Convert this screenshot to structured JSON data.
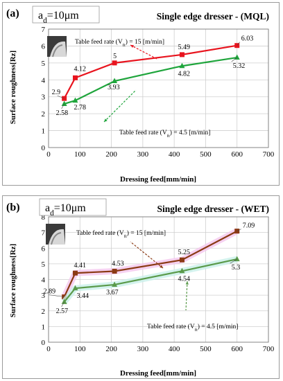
{
  "chart_data": [
    {
      "type": "line",
      "panel_label": "(a)",
      "param_label_main": "a",
      "param_label_sub": "d",
      "param_label_value": "=10μm",
      "title": "Single edge dresser - (MQL)",
      "xlabel": "Dressing feed[mm/min]",
      "ylabel": "Surface roughness[Rz]",
      "xlim": [
        0,
        700
      ],
      "ylim": [
        0,
        7
      ],
      "xticks": [
        "0",
        "100",
        "200",
        "300",
        "400",
        "500",
        "600",
        "700"
      ],
      "yticks": [
        "0",
        "1",
        "2",
        "3",
        "4",
        "5",
        "6",
        "7"
      ],
      "grid": true,
      "series": [
        {
          "name": "Table feed rate (Vft) = 15 [m/min]",
          "color": "#e8141e",
          "marker": "square",
          "x": [
            50,
            85,
            210,
            425,
            600
          ],
          "y": [
            2.9,
            4.12,
            5,
            5.49,
            6.03
          ],
          "labels": [
            "2.9",
            "4.12",
            "5",
            "5.49",
            "6.03"
          ]
        },
        {
          "name": "Table feed rate (Vft) = 4.5 [m/min]",
          "color": "#1fa53c",
          "marker": "triangle",
          "x": [
            50,
            85,
            210,
            425,
            600
          ],
          "y": [
            2.58,
            2.78,
            3.93,
            4.82,
            5.32
          ],
          "labels": [
            "2.58",
            "2.78",
            "3.93",
            "4.82",
            "5.32"
          ]
        }
      ],
      "annotations": [
        {
          "text_main": "Table feed rate (V",
          "text_sub": "ft",
          "text_end": ") = 15 [m/min]"
        },
        {
          "text_main": "Table feed rate (V",
          "text_sub": "ft",
          "text_end": ") = 4.5 [m/min]"
        }
      ]
    },
    {
      "type": "line",
      "panel_label": "(b)",
      "param_label_main": "a",
      "param_label_sub": "d",
      "param_label_value": "=10μm",
      "title": "Single edge dresser - (WET)",
      "xlabel": "Dressing feed[mm/min]",
      "ylabel": "Surface roughness[Rz]",
      "xlim": [
        0,
        700
      ],
      "ylim": [
        0,
        8
      ],
      "xticks": [
        "0",
        "100",
        "200",
        "300",
        "400",
        "500",
        "600",
        "700"
      ],
      "yticks": [
        "0",
        "1",
        "2",
        "3",
        "4",
        "5",
        "6",
        "7",
        "8"
      ],
      "grid": true,
      "series": [
        {
          "name": "Table feed rate (Vft) = 15 [m/min]",
          "color": "#8b3a14",
          "marker": "square",
          "x": [
            50,
            85,
            210,
            425,
            600
          ],
          "y": [
            2.89,
            4.41,
            4.53,
            5.25,
            7.09
          ],
          "labels": [
            "2.89",
            "4.41",
            "4.53",
            "5.25",
            "7.09"
          ]
        },
        {
          "name": "Table feed rate (Vft) = 4.5 [m/min]",
          "color": "#5a9a4a",
          "marker": "triangle",
          "x": [
            50,
            85,
            210,
            425,
            600
          ],
          "y": [
            2.57,
            3.44,
            3.67,
            4.54,
            5.3
          ],
          "labels": [
            "2.57",
            "3.44",
            "3.67",
            "4.54",
            "5.3"
          ]
        }
      ],
      "annotations": [
        {
          "text_main": "Table feed rate (V",
          "text_sub": "ft",
          "text_end": ") = 15 [m/min]"
        },
        {
          "text_main": "Table feed rate (V",
          "text_sub": "ft",
          "text_end": ") = 4.5 [m/min]"
        }
      ]
    }
  ]
}
